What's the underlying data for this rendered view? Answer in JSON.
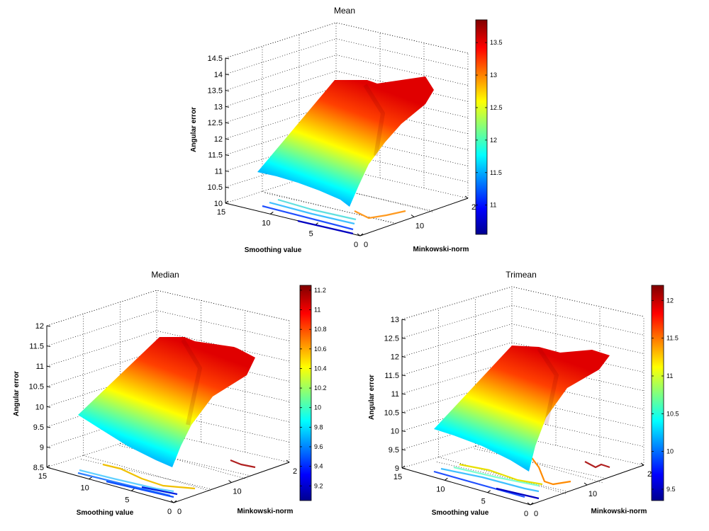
{
  "chart_data": [
    {
      "type": "surface",
      "title": "Mean",
      "xlabel": "Minkowski-norm",
      "ylabel": "Smoothing value",
      "zlabel": "Angular error",
      "x_ticks": [
        "0",
        "10",
        "2"
      ],
      "y_ticks": [
        "0",
        "5",
        "10",
        "15"
      ],
      "z_ticks": [
        "10",
        "10.5",
        "11",
        "11.5",
        "12",
        "12.5",
        "13",
        "13.5",
        "14",
        "14.5"
      ],
      "zlim": [
        10,
        14.5
      ],
      "colorbar_ticks": [
        "11",
        "11.5",
        "12",
        "12.5",
        "13",
        "13.5"
      ],
      "colorbar_range": [
        10.55,
        13.85
      ],
      "surface_samples": [
        {
          "minkowski_norm": 1,
          "smoothing": 0,
          "error": 10.6
        },
        {
          "minkowski_norm": 20,
          "smoothing": 0,
          "error": 13.4
        },
        {
          "minkowski_norm": 1,
          "smoothing": 15,
          "error": 11.0
        },
        {
          "minkowski_norm": 20,
          "smoothing": 15,
          "error": 13.8
        }
      ]
    },
    {
      "type": "surface",
      "title": "Median",
      "xlabel": "Minkowski-norm",
      "ylabel": "Smoothing value",
      "zlabel": "Angular error",
      "x_ticks": [
        "0",
        "10",
        "2"
      ],
      "y_ticks": [
        "0",
        "5",
        "10",
        "15"
      ],
      "z_ticks": [
        "8.5",
        "9",
        "9.5",
        "10",
        "10.5",
        "11",
        "11.5",
        "12"
      ],
      "zlim": [
        8.5,
        12
      ],
      "colorbar_ticks": [
        "9.2",
        "9.4",
        "9.6",
        "9.8",
        "10",
        "10.2",
        "10.4",
        "10.6",
        "10.8",
        "11",
        "11.2"
      ],
      "colorbar_range": [
        9.05,
        11.25
      ],
      "surface_samples": [
        {
          "minkowski_norm": 1,
          "smoothing": 0,
          "error": 9.1
        },
        {
          "minkowski_norm": 20,
          "smoothing": 0,
          "error": 11.0
        },
        {
          "minkowski_norm": 1,
          "smoothing": 15,
          "error": 9.5
        },
        {
          "minkowski_norm": 20,
          "smoothing": 15,
          "error": 11.2
        }
      ]
    },
    {
      "type": "surface",
      "title": "Trimean",
      "xlabel": "Minkowski-norm",
      "ylabel": "Smoothing value",
      "zlabel": "Angular error",
      "x_ticks": [
        "0",
        "10",
        "2"
      ],
      "y_ticks": [
        "0",
        "5",
        "10",
        "15"
      ],
      "z_ticks": [
        "9",
        "9.5",
        "10",
        "10.5",
        "11",
        "11.5",
        "12",
        "12.5",
        "13"
      ],
      "zlim": [
        9,
        13
      ],
      "colorbar_ticks": [
        "9.5",
        "10",
        "10.5",
        "11",
        "11.5",
        "12"
      ],
      "colorbar_range": [
        9.35,
        12.2
      ],
      "surface_samples": [
        {
          "minkowski_norm": 1,
          "smoothing": 0,
          "error": 9.4
        },
        {
          "minkowski_norm": 20,
          "smoothing": 0,
          "error": 11.9
        },
        {
          "minkowski_norm": 1,
          "smoothing": 15,
          "error": 9.9
        },
        {
          "minkowski_norm": 20,
          "smoothing": 15,
          "error": 12.1
        }
      ]
    }
  ],
  "colormap": [
    "#00008f",
    "#0000ff",
    "#00ffff",
    "#ffff00",
    "#ff0000",
    "#800000"
  ]
}
